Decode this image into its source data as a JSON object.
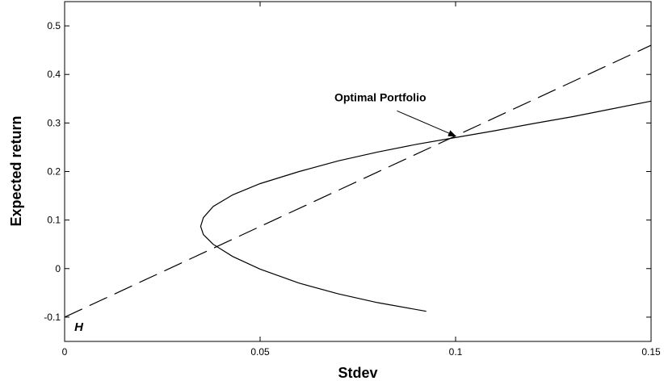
{
  "chart_data": {
    "type": "line",
    "xlabel": "Stdev",
    "ylabel": "Expected return",
    "xlim": [
      0,
      0.15
    ],
    "ylim": [
      -0.15,
      0.55
    ],
    "xticks": [
      0,
      0.05,
      0.1,
      0.15
    ],
    "xtick_labels": [
      "0",
      "0.05",
      "0.1",
      "0.15"
    ],
    "yticks": [
      -0.1,
      0,
      0.1,
      0.2,
      0.3,
      0.4,
      0.5
    ],
    "ytick_labels": [
      "-0.1",
      "0",
      "0.1",
      "0.2",
      "0.3",
      "0.4",
      "0.5"
    ],
    "grid": false,
    "series": [
      {
        "style": "solid",
        "color": "#000000",
        "x": [
          0.0925,
          0.08,
          0.07,
          0.06,
          0.05,
          0.043,
          0.038,
          0.0355,
          0.0348,
          0.0355,
          0.038,
          0.043,
          0.05,
          0.06,
          0.07,
          0.08,
          0.09,
          0.1,
          0.11,
          0.12,
          0.13,
          0.14,
          0.15
        ],
        "y": [
          -0.088,
          -0.07,
          -0.052,
          -0.03,
          -0.001,
          0.025,
          0.05,
          0.07,
          0.087,
          0.105,
          0.128,
          0.152,
          0.175,
          0.2,
          0.222,
          0.24,
          0.256,
          0.27,
          0.284,
          0.299,
          0.313,
          0.329,
          0.345
        ]
      },
      {
        "style": "dashed",
        "color": "#000000",
        "x": [
          0,
          0.15
        ],
        "y": [
          -0.1,
          0.46
        ]
      }
    ],
    "annotations": [
      {
        "text": "Optimal Portfolio",
        "x": 0.069,
        "y": 0.345,
        "arrow_to": [
          0.1,
          0.273
        ]
      },
      {
        "text": "H",
        "x": 0.0025,
        "y": -0.128
      }
    ]
  }
}
